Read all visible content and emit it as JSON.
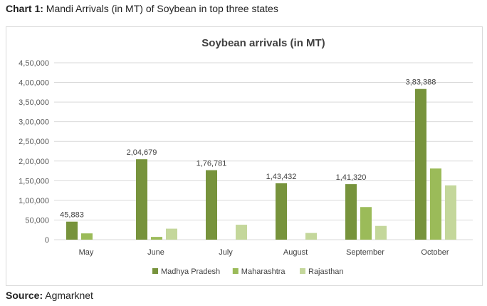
{
  "caption": {
    "prefix": "Chart 1:",
    "text": "Mandi Arrivals (in MT) of Soybean in top three states"
  },
  "source": {
    "prefix": "Source:",
    "text": "Agmarknet"
  },
  "chart_data": {
    "type": "bar",
    "title": "Soybean arrivals (in MT)",
    "xlabel": "",
    "ylabel": "",
    "categories": [
      "May",
      "June",
      "July",
      "August",
      "September",
      "October"
    ],
    "ylim": [
      0,
      450000
    ],
    "yticks": [
      "0",
      "50,000",
      "1,00,000",
      "1,50,000",
      "2,00,000",
      "2,50,000",
      "3,00,000",
      "3,50,000",
      "4,00,000",
      "4,50,000"
    ],
    "grid": true,
    "legend_position": "bottom",
    "series": [
      {
        "name": "Madhya Pradesh",
        "color": "#77933c",
        "values": [
          45883,
          204679,
          176781,
          143432,
          141320,
          383388
        ],
        "labels": [
          "45,883",
          "2,04,679",
          "1,76,781",
          "1,43,432",
          "1,41,320",
          "3,83,388"
        ]
      },
      {
        "name": "Maharashtra",
        "color": "#9bbb59",
        "values": [
          16000,
          7000,
          0,
          0,
          83000,
          181000
        ],
        "labels": []
      },
      {
        "name": "Rajasthan",
        "color": "#c4d79b",
        "values": [
          0,
          28000,
          38000,
          17000,
          35000,
          138000
        ],
        "labels": []
      }
    ]
  }
}
